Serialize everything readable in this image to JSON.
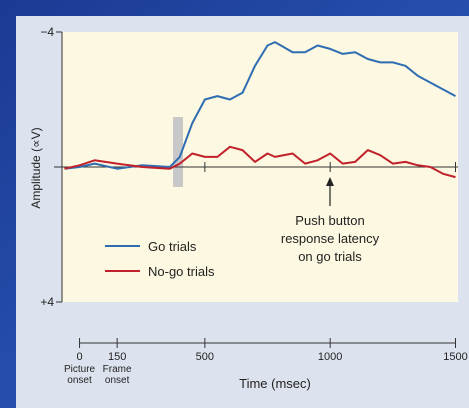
{
  "chart_data": {
    "type": "line",
    "x_label": "Time (msec)",
    "y_label": "Amplitude (∝V)",
    "x": [
      -60,
      0,
      60,
      150,
      250,
      360,
      400,
      450,
      500,
      550,
      600,
      650,
      700,
      750,
      780,
      850,
      900,
      950,
      1000,
      1050,
      1100,
      1150,
      1200,
      1250,
      1300,
      1350,
      1400,
      1450,
      1500
    ],
    "series": [
      {
        "name": "Go trials",
        "color": "#2f6db3",
        "values": [
          0.05,
          0.0,
          -0.1,
          0.05,
          -0.05,
          0.0,
          -0.3,
          -1.3,
          -2.0,
          -2.1,
          -2.0,
          -2.2,
          -3.0,
          -3.6,
          -3.7,
          -3.4,
          -3.4,
          -3.6,
          -3.5,
          -3.35,
          -3.4,
          -3.2,
          -3.1,
          -3.1,
          -3.0,
          -2.7,
          -2.5,
          -2.3,
          -2.1
        ]
      },
      {
        "name": "No-go trials",
        "color": "#c0212b",
        "values": [
          0.05,
          -0.05,
          -0.2,
          -0.1,
          0.0,
          0.05,
          -0.1,
          -0.4,
          -0.3,
          -0.3,
          -0.6,
          -0.5,
          -0.15,
          -0.4,
          -0.3,
          -0.4,
          -0.1,
          -0.2,
          -0.4,
          -0.1,
          -0.15,
          -0.5,
          -0.35,
          -0.1,
          -0.15,
          -0.05,
          0.0,
          0.2,
          0.3
        ]
      }
    ],
    "xlim": [
      -70,
      1510
    ],
    "ylim": [
      4,
      -4
    ],
    "xticks": [
      0,
      150,
      500,
      1000,
      1500
    ],
    "xtick_sublabels": [
      "Picture onset",
      "Frame onset"
    ],
    "yticks": [
      {
        "value": -4,
        "label": "−4"
      },
      {
        "value": 4,
        "label": "+4"
      }
    ],
    "annotation": [
      "Push button",
      "response latency",
      "on go trials"
    ]
  }
}
